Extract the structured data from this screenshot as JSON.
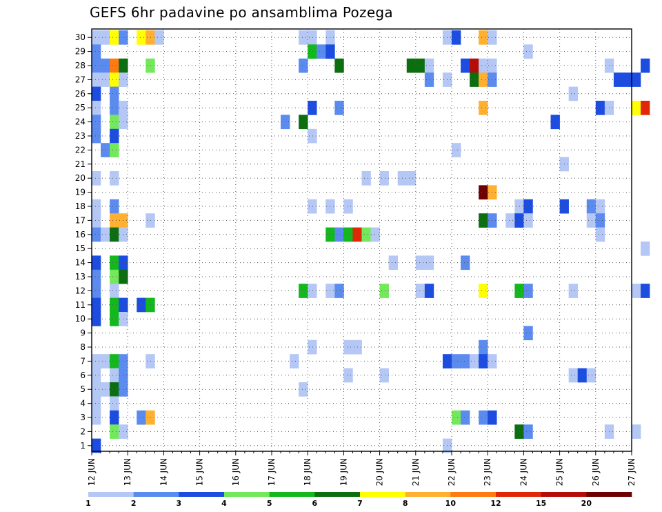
{
  "chart_data": {
    "type": "heatmap",
    "title": "GEFS 6hr padavine po ansamblima Pozega",
    "xlabel": "",
    "ylabel": "",
    "x_ticks": [
      "12 JUN",
      "13 JUN",
      "14 JUN",
      "15 JUN",
      "16 JUN",
      "17 JUN",
      "18 JUN",
      "19 JUN",
      "20 JUN",
      "21 JUN",
      "22 JUN",
      "23 JUN",
      "24 JUN",
      "25 JUN",
      "26 JUN",
      "27 JUN"
    ],
    "y_ticks": [
      1,
      2,
      3,
      4,
      5,
      6,
      7,
      8,
      9,
      10,
      11,
      12,
      13,
      14,
      15,
      16,
      17,
      18,
      19,
      20,
      21,
      22,
      23,
      24,
      25,
      26,
      27,
      28,
      29,
      30
    ],
    "members": 30,
    "steps_per_day": 4,
    "grid": true,
    "colorbar": {
      "labels": [
        "1",
        "2",
        "3",
        "4",
        "5",
        "6",
        "7",
        "8",
        "10",
        "12",
        "15",
        "20"
      ],
      "colors": [
        "#b4c7f5",
        "#5b8bee",
        "#1c4de0",
        "#72e85a",
        "#12b81c",
        "#0c6e10",
        "#ffff00",
        "#ffb030",
        "#ff7a10",
        "#e02808",
        "#b40c08",
        "#6e0000"
      ]
    },
    "cells": [
      {
        "m": 30,
        "t": 0,
        "c": 0
      },
      {
        "m": 30,
        "t": 1,
        "c": 0
      },
      {
        "m": 30,
        "t": 2,
        "c": 6
      },
      {
        "m": 30,
        "t": 3,
        "c": 1
      },
      {
        "m": 30,
        "t": 5,
        "c": 6
      },
      {
        "m": 30,
        "t": 6,
        "c": 7
      },
      {
        "m": 30,
        "t": 7,
        "c": 0
      },
      {
        "m": 30,
        "t": 23,
        "c": 0
      },
      {
        "m": 30,
        "t": 24,
        "c": 0
      },
      {
        "m": 30,
        "t": 26,
        "c": 0
      },
      {
        "m": 30,
        "t": 39,
        "c": 0
      },
      {
        "m": 30,
        "t": 40,
        "c": 2
      },
      {
        "m": 30,
        "t": 43,
        "c": 7
      },
      {
        "m": 30,
        "t": 44,
        "c": 0
      },
      {
        "m": 29,
        "t": 0,
        "c": 1
      },
      {
        "m": 29,
        "t": 24,
        "c": 4
      },
      {
        "m": 29,
        "t": 25,
        "c": 1
      },
      {
        "m": 29,
        "t": 26,
        "c": 2
      },
      {
        "m": 29,
        "t": 48,
        "c": 0
      },
      {
        "m": 28,
        "t": 0,
        "c": 1
      },
      {
        "m": 28,
        "t": 1,
        "c": 1
      },
      {
        "m": 28,
        "t": 2,
        "c": 8
      },
      {
        "m": 28,
        "t": 3,
        "c": 5
      },
      {
        "m": 28,
        "t": 6,
        "c": 3
      },
      {
        "m": 28,
        "t": 23,
        "c": 1
      },
      {
        "m": 28,
        "t": 27,
        "c": 5
      },
      {
        "m": 28,
        "t": 35,
        "c": 5
      },
      {
        "m": 28,
        "t": 36,
        "c": 5
      },
      {
        "m": 28,
        "t": 37,
        "c": 0
      },
      {
        "m": 28,
        "t": 41,
        "c": 2
      },
      {
        "m": 28,
        "t": 42,
        "c": 10
      },
      {
        "m": 28,
        "t": 43,
        "c": 0
      },
      {
        "m": 28,
        "t": 44,
        "c": 0
      },
      {
        "m": 28,
        "t": 57,
        "c": 0
      },
      {
        "m": 28,
        "t": 61,
        "c": 2
      },
      {
        "m": 27,
        "t": 0,
        "c": 0
      },
      {
        "m": 27,
        "t": 1,
        "c": 0
      },
      {
        "m": 27,
        "t": 2,
        "c": 6
      },
      {
        "m": 27,
        "t": 3,
        "c": 0
      },
      {
        "m": 27,
        "t": 37,
        "c": 1
      },
      {
        "m": 27,
        "t": 39,
        "c": 0
      },
      {
        "m": 27,
        "t": 42,
        "c": 5
      },
      {
        "m": 27,
        "t": 43,
        "c": 7
      },
      {
        "m": 27,
        "t": 44,
        "c": 1
      },
      {
        "m": 27,
        "t": 58,
        "c": 2
      },
      {
        "m": 27,
        "t": 59,
        "c": 2
      },
      {
        "m": 27,
        "t": 60,
        "c": 2
      },
      {
        "m": 26,
        "t": 0,
        "c": 2
      },
      {
        "m": 26,
        "t": 2,
        "c": 1
      },
      {
        "m": 26,
        "t": 53,
        "c": 0
      },
      {
        "m": 25,
        "t": 0,
        "c": 0
      },
      {
        "m": 25,
        "t": 2,
        "c": 1
      },
      {
        "m": 25,
        "t": 3,
        "c": 0
      },
      {
        "m": 25,
        "t": 24,
        "c": 2
      },
      {
        "m": 25,
        "t": 27,
        "c": 1
      },
      {
        "m": 25,
        "t": 43,
        "c": 7
      },
      {
        "m": 25,
        "t": 56,
        "c": 2
      },
      {
        "m": 25,
        "t": 57,
        "c": 0
      },
      {
        "m": 25,
        "t": 60,
        "c": 6
      },
      {
        "m": 25,
        "t": 61,
        "c": 9
      },
      {
        "m": 24,
        "t": 0,
        "c": 1
      },
      {
        "m": 24,
        "t": 2,
        "c": 3
      },
      {
        "m": 24,
        "t": 3,
        "c": 0
      },
      {
        "m": 24,
        "t": 21,
        "c": 1
      },
      {
        "m": 24,
        "t": 23,
        "c": 5
      },
      {
        "m": 24,
        "t": 51,
        "c": 2
      },
      {
        "m": 23,
        "t": 0,
        "c": 1
      },
      {
        "m": 23,
        "t": 2,
        "c": 2
      },
      {
        "m": 23,
        "t": 24,
        "c": 0
      },
      {
        "m": 22,
        "t": 1,
        "c": 1
      },
      {
        "m": 22,
        "t": 2,
        "c": 3
      },
      {
        "m": 22,
        "t": 40,
        "c": 0
      },
      {
        "m": 21,
        "t": 52,
        "c": 0
      },
      {
        "m": 20,
        "t": 0,
        "c": 0
      },
      {
        "m": 20,
        "t": 2,
        "c": 0
      },
      {
        "m": 20,
        "t": 30,
        "c": 0
      },
      {
        "m": 20,
        "t": 32,
        "c": 0
      },
      {
        "m": 20,
        "t": 34,
        "c": 0
      },
      {
        "m": 20,
        "t": 35,
        "c": 0
      },
      {
        "m": 19,
        "t": 43,
        "c": 11
      },
      {
        "m": 19,
        "t": 44,
        "c": 7
      },
      {
        "m": 18,
        "t": 0,
        "c": 0
      },
      {
        "m": 18,
        "t": 2,
        "c": 1
      },
      {
        "m": 18,
        "t": 24,
        "c": 0
      },
      {
        "m": 18,
        "t": 26,
        "c": 0
      },
      {
        "m": 18,
        "t": 28,
        "c": 0
      },
      {
        "m": 18,
        "t": 47,
        "c": 0
      },
      {
        "m": 18,
        "t": 48,
        "c": 2
      },
      {
        "m": 18,
        "t": 52,
        "c": 2
      },
      {
        "m": 18,
        "t": 55,
        "c": 1
      },
      {
        "m": 18,
        "t": 56,
        "c": 0
      },
      {
        "m": 17,
        "t": 0,
        "c": 0
      },
      {
        "m": 17,
        "t": 2,
        "c": 7
      },
      {
        "m": 17,
        "t": 3,
        "c": 7
      },
      {
        "m": 17,
        "t": 6,
        "c": 0
      },
      {
        "m": 17,
        "t": 43,
        "c": 5
      },
      {
        "m": 17,
        "t": 44,
        "c": 1
      },
      {
        "m": 17,
        "t": 46,
        "c": 0
      },
      {
        "m": 17,
        "t": 47,
        "c": 2
      },
      {
        "m": 17,
        "t": 48,
        "c": 0
      },
      {
        "m": 17,
        "t": 55,
        "c": 0
      },
      {
        "m": 17,
        "t": 56,
        "c": 1
      },
      {
        "m": 16,
        "t": 0,
        "c": 1
      },
      {
        "m": 16,
        "t": 1,
        "c": 0
      },
      {
        "m": 16,
        "t": 2,
        "c": 5
      },
      {
        "m": 16,
        "t": 3,
        "c": 0
      },
      {
        "m": 16,
        "t": 26,
        "c": 4
      },
      {
        "m": 16,
        "t": 27,
        "c": 1
      },
      {
        "m": 16,
        "t": 28,
        "c": 4
      },
      {
        "m": 16,
        "t": 29,
        "c": 9
      },
      {
        "m": 16,
        "t": 30,
        "c": 3
      },
      {
        "m": 16,
        "t": 31,
        "c": 0
      },
      {
        "m": 16,
        "t": 56,
        "c": 0
      },
      {
        "m": 15,
        "t": 61,
        "c": 0
      },
      {
        "m": 14,
        "t": 0,
        "c": 2
      },
      {
        "m": 14,
        "t": 2,
        "c": 4
      },
      {
        "m": 14,
        "t": 3,
        "c": 2
      },
      {
        "m": 14,
        "t": 33,
        "c": 0
      },
      {
        "m": 14,
        "t": 36,
        "c": 0
      },
      {
        "m": 14,
        "t": 37,
        "c": 0
      },
      {
        "m": 14,
        "t": 41,
        "c": 1
      },
      {
        "m": 13,
        "t": 0,
        "c": 1
      },
      {
        "m": 13,
        "t": 2,
        "c": 3
      },
      {
        "m": 13,
        "t": 3,
        "c": 5
      },
      {
        "m": 12,
        "t": 0,
        "c": 1
      },
      {
        "m": 12,
        "t": 2,
        "c": 0
      },
      {
        "m": 12,
        "t": 23,
        "c": 4
      },
      {
        "m": 12,
        "t": 24,
        "c": 0
      },
      {
        "m": 12,
        "t": 26,
        "c": 0
      },
      {
        "m": 12,
        "t": 27,
        "c": 1
      },
      {
        "m": 12,
        "t": 32,
        "c": 3
      },
      {
        "m": 12,
        "t": 36,
        "c": 0
      },
      {
        "m": 12,
        "t": 37,
        "c": 2
      },
      {
        "m": 12,
        "t": 43,
        "c": 6
      },
      {
        "m": 12,
        "t": 47,
        "c": 4
      },
      {
        "m": 12,
        "t": 48,
        "c": 1
      },
      {
        "m": 12,
        "t": 53,
        "c": 0
      },
      {
        "m": 12,
        "t": 60,
        "c": 0
      },
      {
        "m": 12,
        "t": 61,
        "c": 2
      },
      {
        "m": 11,
        "t": 0,
        "c": 2
      },
      {
        "m": 11,
        "t": 2,
        "c": 4
      },
      {
        "m": 11,
        "t": 3,
        "c": 2
      },
      {
        "m": 11,
        "t": 5,
        "c": 2
      },
      {
        "m": 11,
        "t": 6,
        "c": 4
      },
      {
        "m": 10,
        "t": 0,
        "c": 2
      },
      {
        "m": 10,
        "t": 2,
        "c": 4
      },
      {
        "m": 10,
        "t": 3,
        "c": 0
      },
      {
        "m": 9,
        "t": 48,
        "c": 1
      },
      {
        "m": 8,
        "t": 24,
        "c": 0
      },
      {
        "m": 8,
        "t": 28,
        "c": 0
      },
      {
        "m": 8,
        "t": 29,
        "c": 0
      },
      {
        "m": 8,
        "t": 43,
        "c": 1
      },
      {
        "m": 7,
        "t": 0,
        "c": 0
      },
      {
        "m": 7,
        "t": 1,
        "c": 0
      },
      {
        "m": 7,
        "t": 2,
        "c": 4
      },
      {
        "m": 7,
        "t": 3,
        "c": 1
      },
      {
        "m": 7,
        "t": 6,
        "c": 0
      },
      {
        "m": 7,
        "t": 22,
        "c": 0
      },
      {
        "m": 7,
        "t": 39,
        "c": 2
      },
      {
        "m": 7,
        "t": 40,
        "c": 1
      },
      {
        "m": 7,
        "t": 41,
        "c": 1
      },
      {
        "m": 7,
        "t": 42,
        "c": 0
      },
      {
        "m": 7,
        "t": 43,
        "c": 2
      },
      {
        "m": 7,
        "t": 44,
        "c": 0
      },
      {
        "m": 6,
        "t": 0,
        "c": 0
      },
      {
        "m": 6,
        "t": 2,
        "c": 0
      },
      {
        "m": 6,
        "t": 3,
        "c": 1
      },
      {
        "m": 6,
        "t": 28,
        "c": 0
      },
      {
        "m": 6,
        "t": 32,
        "c": 0
      },
      {
        "m": 6,
        "t": 53,
        "c": 0
      },
      {
        "m": 6,
        "t": 54,
        "c": 2
      },
      {
        "m": 6,
        "t": 55,
        "c": 0
      },
      {
        "m": 5,
        "t": 0,
        "c": 0
      },
      {
        "m": 5,
        "t": 1,
        "c": 0
      },
      {
        "m": 5,
        "t": 2,
        "c": 5
      },
      {
        "m": 5,
        "t": 3,
        "c": 1
      },
      {
        "m": 5,
        "t": 23,
        "c": 0
      },
      {
        "m": 4,
        "t": 0,
        "c": 0
      },
      {
        "m": 4,
        "t": 2,
        "c": 0
      },
      {
        "m": 3,
        "t": 0,
        "c": 0
      },
      {
        "m": 3,
        "t": 2,
        "c": 2
      },
      {
        "m": 3,
        "t": 5,
        "c": 1
      },
      {
        "m": 3,
        "t": 6,
        "c": 7
      },
      {
        "m": 3,
        "t": 40,
        "c": 3
      },
      {
        "m": 3,
        "t": 41,
        "c": 1
      },
      {
        "m": 3,
        "t": 43,
        "c": 1
      },
      {
        "m": 3,
        "t": 44,
        "c": 2
      },
      {
        "m": 2,
        "t": 2,
        "c": 3
      },
      {
        "m": 2,
        "t": 3,
        "c": 0
      },
      {
        "m": 2,
        "t": 47,
        "c": 5
      },
      {
        "m": 2,
        "t": 48,
        "c": 1
      },
      {
        "m": 2,
        "t": 57,
        "c": 0
      },
      {
        "m": 2,
        "t": 60,
        "c": 0
      },
      {
        "m": 1,
        "t": 0,
        "c": 2
      },
      {
        "m": 1,
        "t": 39,
        "c": 0
      }
    ]
  }
}
